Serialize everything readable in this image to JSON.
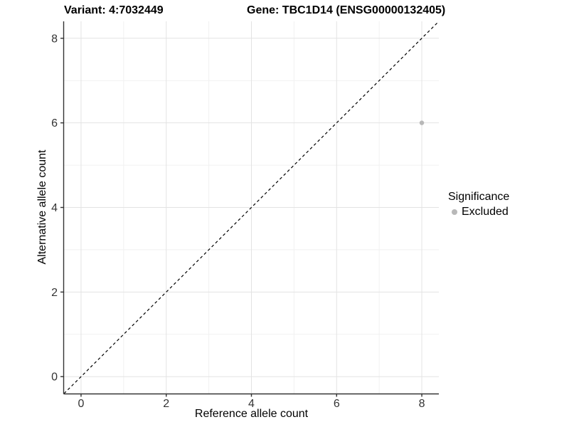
{
  "chart_data": {
    "type": "scatter",
    "titles": [
      "Variant: 4:7032449",
      "Gene: TBC1D14 (ENSG00000132405)"
    ],
    "xlabel": "Reference allele count",
    "ylabel": "Alternative allele count",
    "xlim": [
      -0.4,
      8.4
    ],
    "ylim": [
      -0.4,
      8.4
    ],
    "xticks": [
      0,
      2,
      4,
      6,
      8
    ],
    "yticks": [
      0,
      2,
      4,
      6,
      8
    ],
    "minor_xticks": [
      1,
      3,
      5,
      7
    ],
    "minor_yticks": [
      1,
      3,
      5,
      7
    ],
    "grid": "major+minor",
    "identity_line": {
      "slope": 1,
      "intercept": 0,
      "style": "dashed",
      "color": "#000000"
    },
    "series": [
      {
        "name": "Excluded",
        "color": "#b8b8b8",
        "points": [
          {
            "x": 8,
            "y": 6
          }
        ]
      }
    ],
    "legend": {
      "title": "Significance",
      "position": "right",
      "items": [
        {
          "label": "Excluded",
          "color": "#b8b8b8"
        }
      ]
    },
    "colors": {
      "background": "#ffffff",
      "axis": "#333333",
      "tick_label": "#333333",
      "grid_major": "#e3e3e3",
      "grid_minor": "#f1f1f1"
    }
  }
}
